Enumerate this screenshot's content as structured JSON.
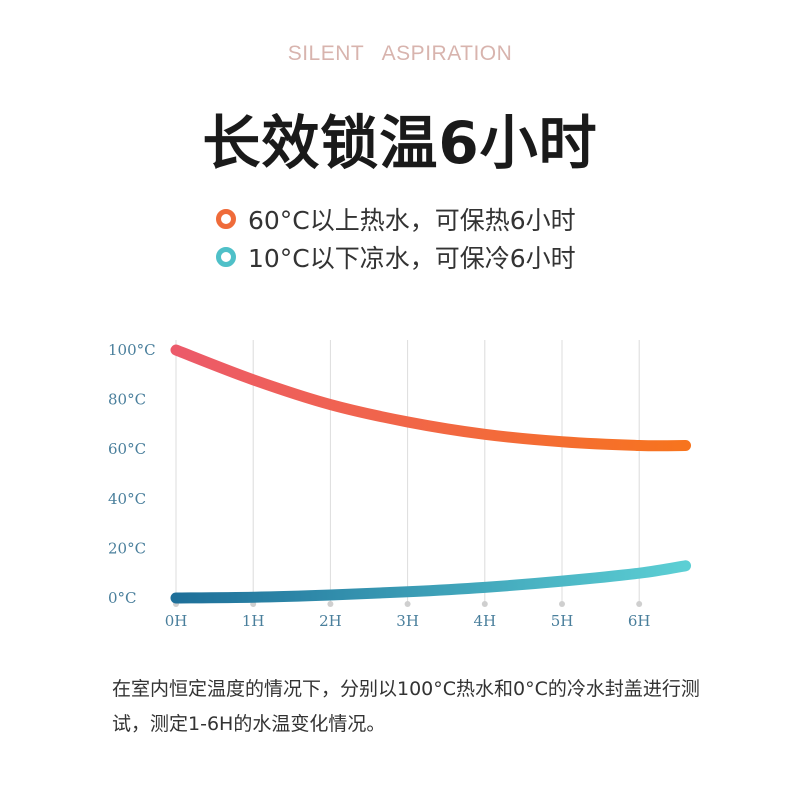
{
  "header": {
    "tagline": "SILENT   ASPIRATION",
    "headline": "长效锁温6小时"
  },
  "legend": [
    {
      "label": "60°C以上热水，可保热6小时",
      "color": "#ef6b3a"
    },
    {
      "label": "10°C以下凉水，可保冷6小时",
      "color": "#4fc0c8"
    }
  ],
  "chart_data": {
    "type": "line",
    "x": [
      "0H",
      "1H",
      "2H",
      "3H",
      "4H",
      "5H",
      "6H"
    ],
    "y_ticks": [
      "100°C",
      "80°C",
      "60°C",
      "40°C",
      "20°C",
      "0°C"
    ],
    "y_tick_values": [
      100,
      80,
      60,
      40,
      20,
      0
    ],
    "ylim": [
      0,
      100
    ],
    "grid": "vertical",
    "series": [
      {
        "x_values": [
          0,
          1,
          2,
          3,
          4,
          5,
          6,
          6.6
        ],
        "values": [
          100,
          88,
          78,
          71,
          66,
          63,
          61.5,
          61.5
        ],
        "color_start": "#ec5a6a",
        "color_end": "#f7741e"
      },
      {
        "x_values": [
          0,
          1,
          2,
          3,
          4,
          5,
          6,
          6.6
        ],
        "values": [
          0,
          0.3,
          1.2,
          2.5,
          4.3,
          6.8,
          10,
          13
        ],
        "color_start": "#1e6f99",
        "color_end": "#5ccfd4"
      }
    ]
  },
  "caption": "在室内恒定温度的情况下，分别以100°C热水和0°C的冷水封盖进行测试，测定1-6H的水温变化情况。"
}
